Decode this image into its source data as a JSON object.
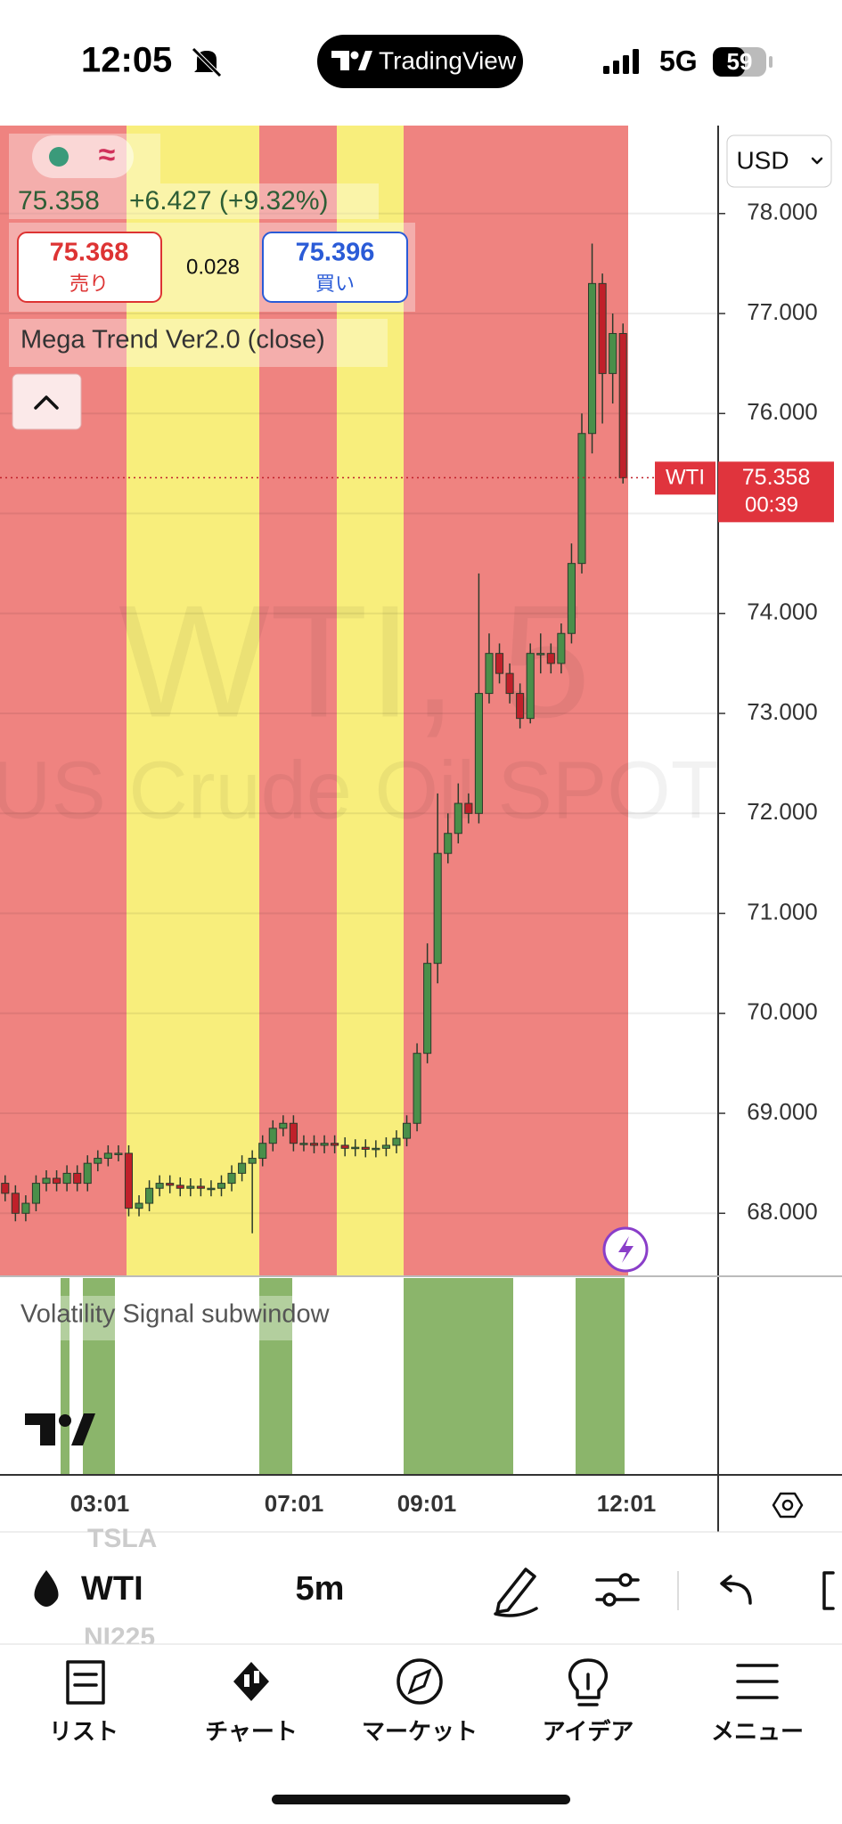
{
  "status_bar": {
    "time": "12:05",
    "app": "TradingView",
    "network": "5G",
    "battery": "59"
  },
  "header": {
    "price": "75.358",
    "change": "+6.427 (+9.32%)",
    "sell_price": "75.368",
    "sell_label": "売り",
    "spread": "0.028",
    "buy_price": "75.396",
    "buy_label": "買い",
    "indicator": "Mega Trend Ver2.0 (close)"
  },
  "chart_data": {
    "type": "candlestick",
    "watermark": "WTI, 5",
    "watermark_subtitle": "US Crude Oil SPOT",
    "currency": "USD",
    "ylim": [
      67.37,
      78.88
    ],
    "yticks": [
      {
        "value": 68,
        "label": "68.000"
      },
      {
        "value": 69,
        "label": "69.000"
      },
      {
        "value": 70,
        "label": "70.000"
      },
      {
        "value": 71,
        "label": "71.000"
      },
      {
        "value": 72,
        "label": "72.000"
      },
      {
        "value": 73,
        "label": "73.000"
      },
      {
        "value": 74,
        "label": "74.000"
      },
      {
        "value": 75,
        "label": "75.000"
      },
      {
        "value": 76,
        "label": "76.000"
      },
      {
        "value": 77,
        "label": "77.000"
      },
      {
        "value": 78,
        "label": "78.000"
      }
    ],
    "grid": true,
    "x_labels": [
      "03:01",
      "07:01",
      "09:01",
      "12:01"
    ],
    "up_color": "#4a8f4a",
    "down_color": "#c0202a",
    "open": [
      68.3,
      68.2,
      68.0,
      68.1,
      68.3,
      68.35,
      68.3,
      68.4,
      68.3,
      68.5,
      68.55,
      68.6,
      68.6,
      68.05,
      68.1,
      68.25,
      68.3,
      68.28,
      68.25,
      68.27,
      68.25,
      68.25,
      68.3,
      68.4,
      68.5,
      68.55,
      68.7,
      68.85,
      68.9,
      68.7,
      68.7,
      68.68,
      68.7,
      68.68,
      68.65,
      68.66,
      68.64,
      68.65,
      68.68,
      68.75,
      68.9,
      69.6,
      70.5,
      71.6,
      71.8,
      72.1,
      72.0,
      73.2,
      73.6,
      73.4,
      73.2,
      72.95,
      73.6,
      73.6,
      73.5,
      73.8,
      74.5,
      75.8,
      77.3,
      76.4,
      76.8
    ],
    "high": [
      68.38,
      68.28,
      68.18,
      68.38,
      68.43,
      68.43,
      68.48,
      68.48,
      68.58,
      68.63,
      68.68,
      68.68,
      68.68,
      68.18,
      68.33,
      68.38,
      68.38,
      68.36,
      68.35,
      68.35,
      68.33,
      68.38,
      68.48,
      68.58,
      68.63,
      68.78,
      68.93,
      68.98,
      68.98,
      68.78,
      68.78,
      68.78,
      68.78,
      68.76,
      68.74,
      68.74,
      68.73,
      68.76,
      68.83,
      68.98,
      69.7,
      70.7,
      72.2,
      72.0,
      72.3,
      72.2,
      74.4,
      73.8,
      73.7,
      73.5,
      73.3,
      73.7,
      73.8,
      73.7,
      73.9,
      74.7,
      76.0,
      77.7,
      77.4,
      77.0,
      76.9
    ],
    "low": [
      68.12,
      67.92,
      67.92,
      68.02,
      68.22,
      68.22,
      68.22,
      68.22,
      68.22,
      68.42,
      68.47,
      68.52,
      67.97,
      67.97,
      68.02,
      68.17,
      68.2,
      68.17,
      68.17,
      68.17,
      68.17,
      68.17,
      68.22,
      68.32,
      67.8,
      68.47,
      68.62,
      68.77,
      68.62,
      68.62,
      68.6,
      68.6,
      68.6,
      68.57,
      68.57,
      68.56,
      68.56,
      68.57,
      68.6,
      68.67,
      68.82,
      69.5,
      70.3,
      71.5,
      71.7,
      71.9,
      71.9,
      73.1,
      73.3,
      73.1,
      72.85,
      72.9,
      73.4,
      73.4,
      73.4,
      73.7,
      74.4,
      75.6,
      75.9,
      76.1,
      75.3
    ],
    "close": [
      68.2,
      68.0,
      68.1,
      68.3,
      68.35,
      68.3,
      68.4,
      68.3,
      68.5,
      68.55,
      68.6,
      68.6,
      68.05,
      68.1,
      68.25,
      68.3,
      68.28,
      68.25,
      68.27,
      68.25,
      68.25,
      68.3,
      68.4,
      68.5,
      68.55,
      68.7,
      68.85,
      68.9,
      68.7,
      68.7,
      68.68,
      68.7,
      68.68,
      68.65,
      68.66,
      68.64,
      68.65,
      68.68,
      68.75,
      68.9,
      69.6,
      70.5,
      71.6,
      71.8,
      72.1,
      72.0,
      73.2,
      73.6,
      73.4,
      73.2,
      72.95,
      73.6,
      73.6,
      73.5,
      73.8,
      74.5,
      75.8,
      77.3,
      76.4,
      76.8,
      75.358
    ],
    "last_price": {
      "symbol": "WTI",
      "value": 75.358,
      "countdown": "00:39"
    }
  },
  "subwindow": {
    "title": "Volatility Signal subwindow"
  },
  "toolbar": {
    "symbol": "WTI",
    "interval": "5m",
    "hidden_above": "TSLA",
    "hidden_below": "NI225"
  },
  "tabs": [
    "リスト",
    "チャート",
    "マーケット",
    "アイデア",
    "メニュー"
  ]
}
